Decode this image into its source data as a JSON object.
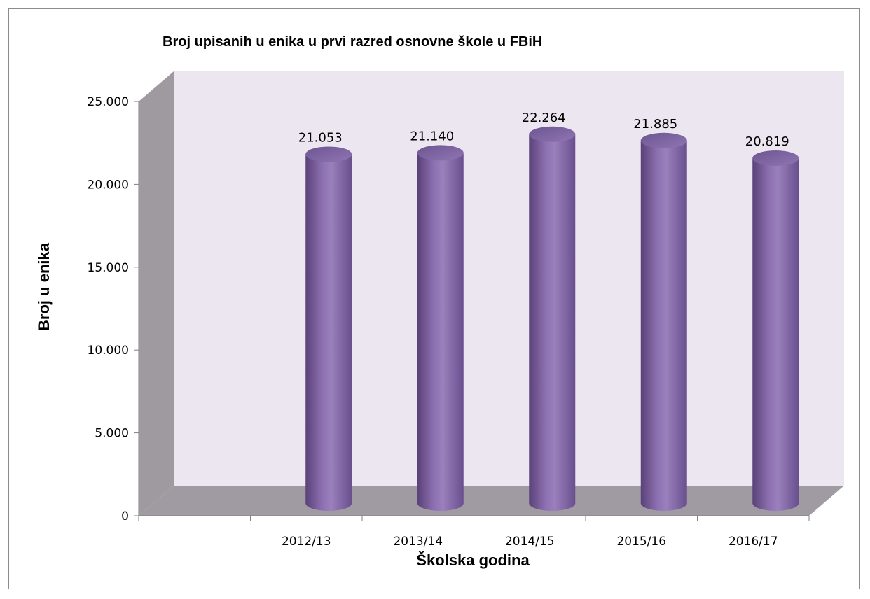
{
  "chart_data": {
    "type": "bar",
    "style": "3d-cylinder",
    "title": "Broj upisanih u  enika u prvi razred osnovne škole u FBiH",
    "xlabel": "Školska godina",
    "ylabel": "Broj u  enika",
    "categories": [
      "2012/13",
      "2013/14",
      "2014/15",
      "2015/16",
      "2016/17"
    ],
    "values": [
      21053,
      21140,
      22264,
      21885,
      20819
    ],
    "value_labels": [
      "21.053",
      "21.140",
      "22.264",
      "21.885",
      "20.819"
    ],
    "ylim": [
      0,
      25000
    ],
    "yticks": [
      {
        "value": 0,
        "label": "0"
      },
      {
        "value": 5000,
        "label": "5.000"
      },
      {
        "value": 10000,
        "label": "10.000"
      },
      {
        "value": 15000,
        "label": "15.000"
      },
      {
        "value": 20000,
        "label": "20.000"
      },
      {
        "value": 25000,
        "label": "25.000"
      }
    ],
    "grid": false,
    "legend": "none",
    "colors": {
      "bar": "#8064a2",
      "bar_dark": "#5e4680",
      "bar_light": "#a58bc6",
      "back_wall": "#ece6f0",
      "side_wall": "#9e9a9f",
      "floor": "#a09aa2"
    }
  }
}
